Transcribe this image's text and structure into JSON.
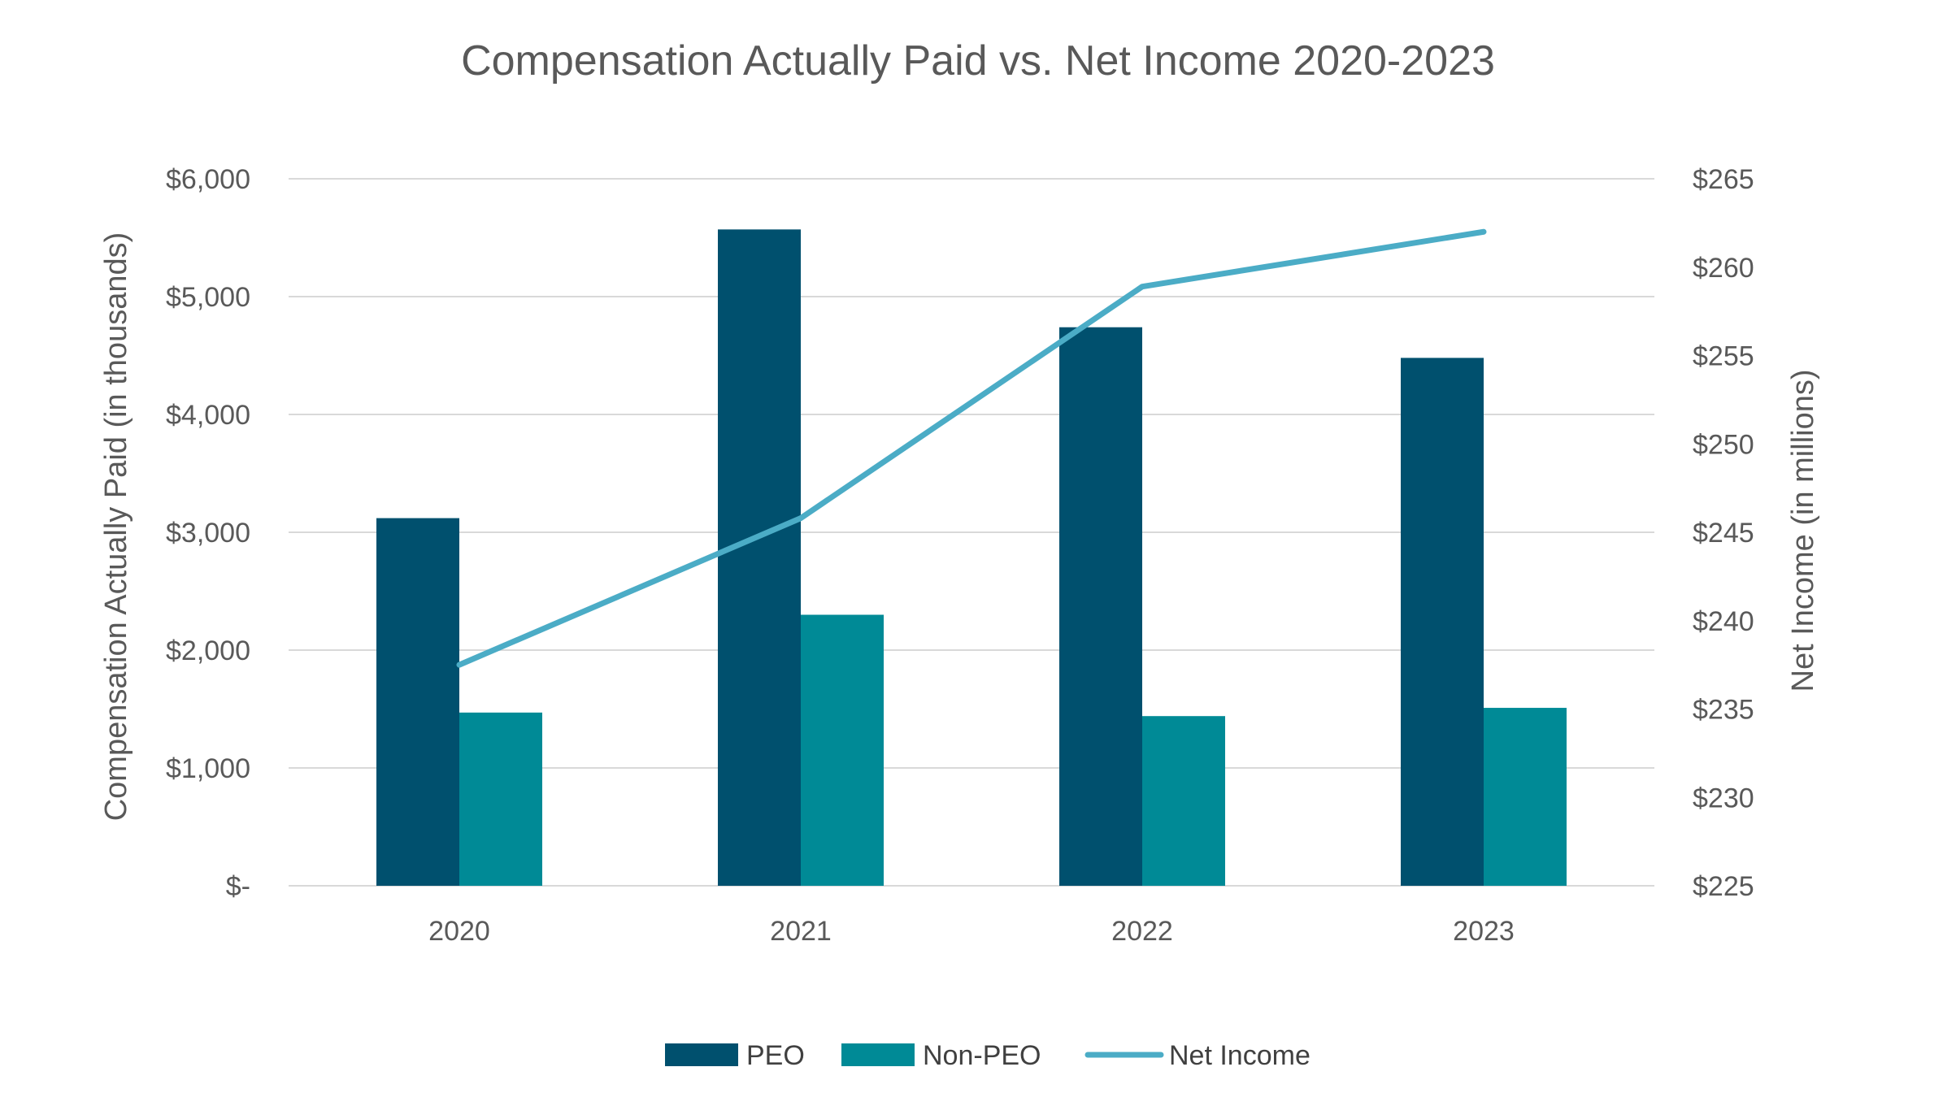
{
  "chart_data": {
    "type": "bar",
    "title": "Compensation Actually Paid vs. Net Income 2020-2023",
    "categories": [
      "2020",
      "2021",
      "2022",
      "2023"
    ],
    "series": [
      {
        "name": "PEO",
        "type": "bar",
        "axis": "left",
        "color": "#00506e",
        "values": [
          3120,
          5570,
          4740,
          4480
        ]
      },
      {
        "name": "Non-PEO",
        "type": "bar",
        "axis": "left",
        "color": "#008a96",
        "values": [
          1470,
          2300,
          1440,
          1510
        ]
      },
      {
        "name": "Net Income",
        "type": "line",
        "axis": "right",
        "color": "#4bacc6",
        "values": [
          237.5,
          245.8,
          258.9,
          262.0
        ]
      }
    ],
    "ylabel": "Compensation Actually Paid (in thousands)",
    "y2label": "Net Income (in millions)",
    "ylim": [
      0,
      6000
    ],
    "y2lim": [
      225,
      265
    ],
    "yticks": [
      "$-",
      "$1,000",
      "$2,000",
      "$3,000",
      "$4,000",
      "$5,000",
      "$6,000"
    ],
    "y2ticks": [
      "$225",
      "$230",
      "$235",
      "$240",
      "$245",
      "$250",
      "$255",
      "$260",
      "$265"
    ],
    "grid": true,
    "legend": "bottom"
  }
}
